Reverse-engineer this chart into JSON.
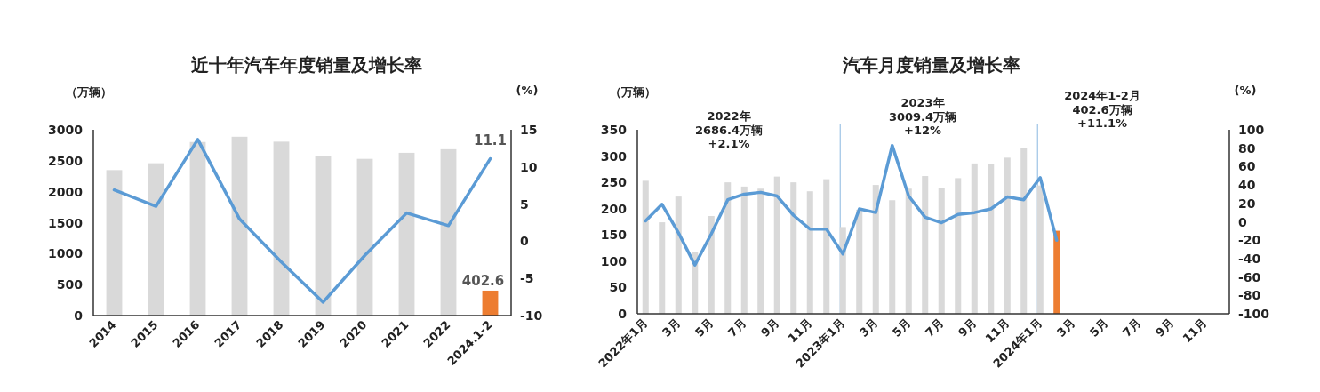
{
  "chart_data": [
    {
      "type": "bar",
      "title": "近十年汽车年度销量及增长率",
      "ylabel": "（万辆）",
      "y2label": "(%)",
      "categories": [
        "2014",
        "2015",
        "2016",
        "2017",
        "2018",
        "2019",
        "2020",
        "2021",
        "2022",
        "2024.1-2"
      ],
      "ylim": [
        0,
        3000
      ],
      "yticks": [
        0,
        500,
        1000,
        1500,
        2000,
        2500,
        3000
      ],
      "y2lim": [
        -10,
        15
      ],
      "y2ticks": [
        -10,
        -5,
        0,
        5,
        10,
        15
      ],
      "series": [
        {
          "colors": [
            "#d9d9d9",
            "#d9d9d9",
            "#d9d9d9",
            "#d9d9d9",
            "#d9d9d9",
            "#d9d9d9",
            "#d9d9d9",
            "#d9d9d9",
            "#d9d9d9",
            "#ed7d31"
          ],
          "values": [
            2349,
            2460,
            2803,
            2888,
            2808,
            2577,
            2531,
            2628,
            2686,
            402.6
          ],
          "value_labels": [
            null,
            null,
            null,
            null,
            null,
            null,
            null,
            null,
            null,
            "402.6"
          ]
        },
        {
          "type": "line",
          "axis": "y2",
          "color": "#5b9bd5",
          "values": [
            6.9,
            4.7,
            13.7,
            3.0,
            -2.8,
            -8.2,
            -1.9,
            3.8,
            2.1,
            11.1
          ],
          "value_labels": [
            null,
            null,
            null,
            null,
            null,
            null,
            null,
            null,
            null,
            "11.1"
          ]
        }
      ]
    },
    {
      "type": "bar",
      "title": "汽车月度销量及增长率",
      "ylabel": "（万辆）",
      "y2label": "(%)",
      "categories": [
        "2022年1月",
        null,
        "3月",
        null,
        "5月",
        null,
        "7月",
        null,
        "9月",
        null,
        "11月",
        null,
        "2023年1月",
        null,
        "3月",
        null,
        "5月",
        null,
        "7月",
        null,
        "9月",
        null,
        "11月",
        null,
        "2024年1月",
        null,
        "3月",
        null,
        "5月",
        null,
        "7月",
        null,
        "9月",
        null,
        "11月",
        null
      ],
      "ylim": [
        0,
        350
      ],
      "yticks": [
        0,
        50,
        100,
        150,
        200,
        250,
        300,
        350
      ],
      "y2lim": [
        -100,
        100
      ],
      "y2ticks": [
        -100,
        -80,
        -60,
        -40,
        -20,
        0,
        20,
        40,
        60,
        80,
        100
      ],
      "ref_lines": [
        {
          "axis": "x",
          "value": "2023年1月",
          "color": "#9dc3e6"
        },
        {
          "axis": "x",
          "value": "2024年1月",
          "color": "#9dc3e6"
        }
      ],
      "annotations": [
        "2022年\n2686.4万辆\n+2.1%",
        "2023年\n3009.4万辆\n+12%",
        "2024年1-2月\n402.6万辆\n+11.1%"
      ],
      "series": [
        {
          "colors": [
            "#d9d9d9",
            "#d9d9d9",
            "#d9d9d9",
            "#d9d9d9",
            "#d9d9d9",
            "#d9d9d9",
            "#d9d9d9",
            "#d9d9d9",
            "#d9d9d9",
            "#d9d9d9",
            "#d9d9d9",
            "#d9d9d9",
            "#d9d9d9",
            "#d9d9d9",
            "#d9d9d9",
            "#d9d9d9",
            "#d9d9d9",
            "#d9d9d9",
            "#d9d9d9",
            "#d9d9d9",
            "#d9d9d9",
            "#d9d9d9",
            "#d9d9d9",
            "#d9d9d9",
            "#d9d9d9",
            "#ed7d31",
            null,
            null,
            null,
            null,
            null,
            null,
            null,
            null,
            null,
            null
          ],
          "values": [
            253,
            174,
            223,
            118,
            186,
            250,
            242,
            238,
            261,
            250,
            233,
            256,
            165,
            198,
            245,
            216,
            238,
            262,
            239,
            258,
            286,
            285,
            297,
            316,
            244,
            158,
            null,
            null,
            null,
            null,
            null,
            null,
            null,
            null,
            null,
            null
          ]
        },
        {
          "type": "line",
          "axis": "y2",
          "color": "#5b9bd5",
          "values": [
            1,
            19,
            -12,
            -47,
            -13,
            24,
            30,
            32,
            28,
            7,
            -8,
            -8,
            -35,
            14,
            10,
            83,
            28,
            5,
            -1,
            8,
            10,
            14,
            27,
            24,
            48,
            -20,
            null,
            null,
            null,
            null,
            null,
            null,
            null,
            null,
            null,
            null
          ]
        }
      ]
    }
  ]
}
